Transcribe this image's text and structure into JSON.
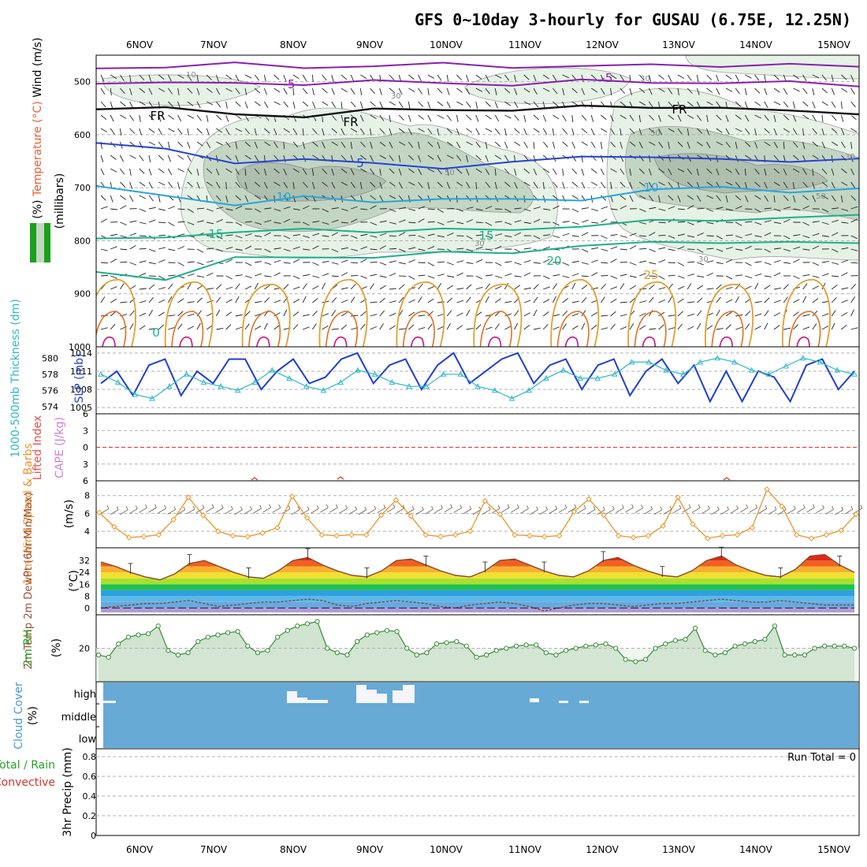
{
  "chart_data": {
    "title": "GFS 0~10day 3-hourly for GUSAU (6.75E, 12.25N)",
    "dates": [
      "6NOV",
      "7NOV",
      "8NOV",
      "9NOV",
      "10NOV",
      "11NOV",
      "12NOV",
      "13NOV",
      "14NOV",
      "15NOV"
    ],
    "panels": [
      {
        "id": "upper_air",
        "type": "contour",
        "ylabel_parts": [
          "RH (%)",
          "Temperature (°C)",
          "Wind (m/s)"
        ],
        "ylabel_units": "(millibars)",
        "yticks": [
          500,
          600,
          700,
          800,
          900,
          1000
        ],
        "ylim": [
          1000,
          450
        ],
        "rh_labels": [
          "10",
          "30",
          "50"
        ],
        "temperature_isotherms": [
          {
            "label": "-5",
            "p": [
              475,
              470,
              468,
              472,
              470,
              468,
              470,
              472,
              469,
              468,
              470,
              471
            ]
          },
          {
            "label": "-5",
            "p": [
              500,
              502,
              505,
              502,
              500,
              503,
              504,
              500,
              500,
              502,
              503,
              505
            ]
          },
          {
            "label": "FR",
            "p": [
              548,
              552,
              560,
              565,
              555,
              550,
              555,
              548,
              545,
              552,
              555,
              558
            ]
          },
          {
            "label": "5",
            "p": [
              615,
              630,
              650,
              648,
              655,
              660,
              655,
              640,
              640,
              650,
              648,
              645
            ]
          },
          {
            "label": "10",
            "p": [
              700,
              715,
              730,
              720,
              725,
              720,
              725,
              720,
              705,
              700,
              705,
              705
            ]
          },
          {
            "label": "15",
            "p": [
              800,
              790,
              785,
              780,
              780,
              780,
              780,
              770,
              765,
              760,
              755,
              755
            ]
          },
          {
            "label": "20",
            "p": [
              860,
              870,
              835,
              830,
              830,
              825,
              820,
              810,
              805,
              800,
              805,
              805
            ]
          },
          {
            "label": "25",
            "p": [
              880
            ]
          }
        ],
        "annotations": [
          "FR",
          "FR",
          "FR",
          "-5",
          "5",
          "10",
          "15",
          "20",
          "25",
          "0"
        ]
      },
      {
        "id": "slp_thickness",
        "type": "line",
        "ylabel_left": "1000-500mb Thickness (dm)",
        "ylabel_right": "SLP (mb)",
        "yticks_left": [
          574,
          576,
          578,
          580
        ],
        "yticks_right": [
          1005,
          1008,
          1011,
          1014
        ],
        "series": [
          {
            "name": "SLP (mb)",
            "values": [
              1009,
              1011,
              1007,
              1012,
              1013,
              1007,
              1011,
              1009,
              1013,
              1013,
              1008,
              1011,
              1013,
              1009,
              1010,
              1013,
              1014,
              1009,
              1012,
              1013,
              1008,
              1012,
              1014,
              1009,
              1011,
              1013,
              1014,
              1009,
              1012,
              1013,
              1008,
              1012,
              1013,
              1007,
              1011,
              1013,
              1009,
              1012,
              1006,
              1011,
              1006,
              1011,
              1010,
              1006,
              1012,
              1013,
              1008,
              1011
            ]
          },
          {
            "name": "1000-500mb Thickness (dm)",
            "values": [
              578,
              577,
              575.5,
              575,
              576.5,
              578,
              577,
              576.5,
              576,
              577,
              578.5,
              577.5,
              576.5,
              576,
              577,
              578.5,
              578,
              577,
              576.5,
              576.5,
              578,
              578,
              576.5,
              576,
              575,
              576,
              577.5,
              578.5,
              577.5,
              577.5,
              578,
              579.5,
              579.5,
              578.5,
              578,
              579.5,
              580,
              579.5,
              578.5,
              578,
              579,
              580,
              579.5,
              578.5,
              578
            ]
          }
        ]
      },
      {
        "id": "cape_li",
        "type": "line",
        "ylabel_left": "Lifted Index",
        "ylabel_right": "CAPE (J/kg)",
        "yticks": [
          -6,
          -3,
          0,
          3,
          6
        ],
        "yticklabels": [
          "6",
          "3",
          "0",
          "3",
          "6"
        ]
      },
      {
        "id": "wind10m",
        "type": "line",
        "ylabel_left": "10m Wind Speed & Barbs",
        "units": "(m/s)",
        "yticks": [
          4,
          6,
          8
        ],
        "series": [
          {
            "name": "10m Wind Speed",
            "values": [
              6.1,
              4.5,
              3.3,
              3.4,
              3.6,
              5.3,
              7.8,
              5.8,
              4.0,
              3.5,
              3.4,
              3.8,
              4.4,
              7.9,
              5.5,
              3.6,
              3.5,
              3.6,
              3.6,
              5.8,
              7.5,
              5.7,
              3.6,
              3.4,
              3.6,
              4.0,
              7.4,
              5.9,
              3.6,
              3.5,
              3.4,
              3.5,
              6.2,
              7.6,
              5.8,
              3.5,
              3.3,
              3.5,
              4.6,
              7.8,
              4.8,
              3.2,
              3.5,
              3.6,
              4.4,
              8.7,
              6.8,
              3.6,
              3.2,
              3.6,
              4.1,
              5.9
            ]
          }
        ]
      },
      {
        "id": "temp2m",
        "type": "area",
        "ylabel_left": "2m Temp 2m DewPt (6hr Min/Max)",
        "units": "(°C)",
        "yticks": [
          0,
          8,
          16,
          24,
          32
        ],
        "series": [
          {
            "name": "2m Temp",
            "values": [
              31,
              28,
              24,
              21,
              19,
              23,
              30,
              32,
              28,
              24,
              21,
              20,
              25,
              32,
              34,
              29,
              25,
              22,
              21,
              25,
              32,
              33,
              29,
              25,
              22,
              21,
              25,
              32,
              33,
              29,
              25,
              22,
              21,
              25,
              32,
              34,
              29,
              25,
              22,
              21,
              25,
              32,
              35,
              29,
              25,
              22,
              21,
              26,
              35,
              36,
              29,
              24
            ]
          },
          {
            "name": "2m DewPt",
            "values": [
              0,
              1,
              2,
              3,
              3,
              4,
              5,
              3,
              1,
              2,
              3,
              4,
              4,
              5,
              6,
              5,
              2,
              1,
              3,
              4,
              5,
              4,
              3,
              1,
              0,
              2,
              3,
              4,
              3,
              1,
              -2,
              0,
              2,
              3,
              3,
              2,
              1,
              2,
              3,
              3,
              4,
              5,
              6,
              5,
              4,
              4,
              5,
              4,
              3,
              2,
              2,
              2
            ]
          }
        ]
      },
      {
        "id": "rh2m",
        "type": "area",
        "ylabel_left": "2m RH",
        "units": "(%)",
        "yticks": [
          20
        ],
        "series": [
          {
            "name": "2m RH",
            "values": [
              17,
              16,
              22,
              25,
              26,
              26.5,
              30,
              19,
              17,
              18,
              23,
              25,
              26,
              27,
              27.5,
              21,
              18,
              19,
              25,
              28,
              30,
              31,
              32,
              20,
              18,
              17,
              23,
              26,
              27,
              28,
              27.5,
              20,
              17,
              18,
              22,
              22.5,
              23,
              21,
              16,
              17,
              19,
              20,
              21,
              21.5,
              21.5,
              18,
              17,
              19,
              20,
              21,
              21.5,
              22,
              20,
              15,
              14,
              15,
              20,
              22,
              23.5,
              24,
              29,
              19,
              17,
              18,
              21,
              22,
              23,
              24,
              30,
              17,
              17,
              17,
              20,
              21,
              21,
              21,
              20
            ]
          }
        ]
      },
      {
        "id": "cloud",
        "type": "bar",
        "ylabel_left": "Cloud Cover",
        "units": "(%)",
        "levels": [
          "high",
          "middle",
          "low"
        ]
      },
      {
        "id": "precip",
        "type": "bar",
        "ylabel_left": "Total / Rain / Convective",
        "ylabel_parts": [
          "Total / Rain",
          "Convective"
        ],
        "units": "3hr Precip (mm)",
        "yticks": [
          0,
          0.2,
          0.4,
          0.6,
          0.8
        ],
        "run_total": "Run Total = 0"
      }
    ]
  }
}
